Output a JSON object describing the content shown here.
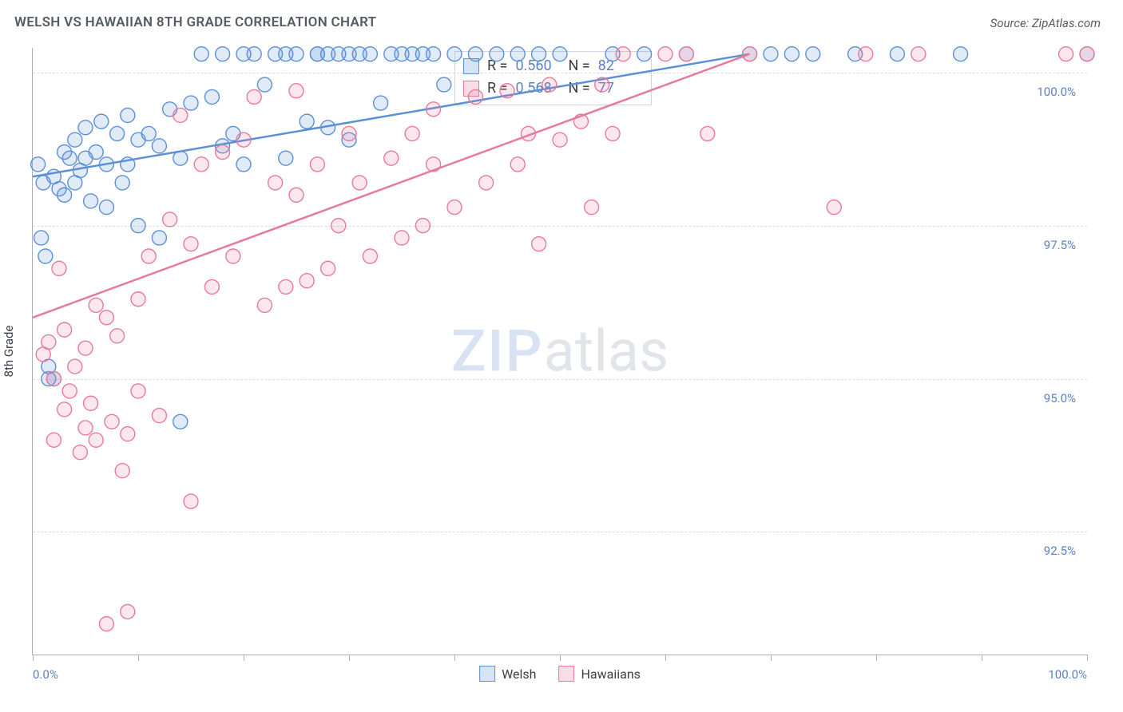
{
  "title": "WELSH VS HAWAIIAN 8TH GRADE CORRELATION CHART",
  "source_label": "Source: ZipAtlas.com",
  "watermark": {
    "part1": "ZIP",
    "part2": "atlas"
  },
  "ylabel": "8th Grade",
  "chart": {
    "type": "scatter",
    "xlim": [
      0,
      100
    ],
    "ylim": [
      90.5,
      100.4
    ],
    "x_tick_positions": [
      0,
      10,
      20,
      30,
      40,
      50,
      60,
      70,
      80,
      90,
      100
    ],
    "x_tick_labels": {
      "0": "0.0%",
      "100": "100.0%"
    },
    "y_gridlines": [
      92.5,
      95.0,
      97.5,
      100.0
    ],
    "y_tick_labels": {
      "92.5": "92.5%",
      "95.0": "95.0%",
      "97.5": "97.5%",
      "100.0": "100.0%"
    },
    "background_color": "#ffffff",
    "grid_color": "#d7dbe0",
    "axis_color": "#aab0b8",
    "marker_radius": 9,
    "marker_stroke_width": 1.4,
    "marker_fill_opacity": 0.18,
    "trend_line_width": 2.5
  },
  "series": [
    {
      "name": "Welsh",
      "color_stroke": "#5b8fd6",
      "color_fill": "#5b8fd6",
      "trend": {
        "x1": 0,
        "y1": 98.3,
        "x2": 68,
        "y2": 100.3
      },
      "stats": {
        "r": "0.560",
        "n": "82"
      },
      "points": [
        [
          0.5,
          98.5
        ],
        [
          0.8,
          97.3
        ],
        [
          1,
          98.2
        ],
        [
          1.2,
          97.0
        ],
        [
          1.5,
          95.0
        ],
        [
          1.5,
          95.2
        ],
        [
          2,
          98.3
        ],
        [
          2,
          95.0
        ],
        [
          2.5,
          98.1
        ],
        [
          3,
          98.0
        ],
        [
          3,
          98.7
        ],
        [
          3.5,
          98.6
        ],
        [
          4,
          98.9
        ],
        [
          4,
          98.2
        ],
        [
          4.5,
          98.4
        ],
        [
          5,
          98.6
        ],
        [
          5,
          99.1
        ],
        [
          5.5,
          97.9
        ],
        [
          6,
          98.7
        ],
        [
          6.5,
          99.2
        ],
        [
          7,
          98.5
        ],
        [
          7,
          97.8
        ],
        [
          8,
          99.0
        ],
        [
          8.5,
          98.2
        ],
        [
          9,
          99.3
        ],
        [
          9,
          98.5
        ],
        [
          10,
          98.9
        ],
        [
          10,
          97.5
        ],
        [
          11,
          99.0
        ],
        [
          12,
          98.8
        ],
        [
          12,
          97.3
        ],
        [
          13,
          99.4
        ],
        [
          14,
          94.3
        ],
        [
          14,
          98.6
        ],
        [
          15,
          99.5
        ],
        [
          16,
          100.3
        ],
        [
          17,
          99.6
        ],
        [
          18,
          100.3
        ],
        [
          18,
          98.8
        ],
        [
          19,
          99.0
        ],
        [
          20,
          100.3
        ],
        [
          20,
          98.5
        ],
        [
          21,
          100.3
        ],
        [
          22,
          99.8
        ],
        [
          23,
          100.3
        ],
        [
          24,
          100.3
        ],
        [
          24,
          98.6
        ],
        [
          25,
          100.3
        ],
        [
          26,
          99.2
        ],
        [
          27,
          100.3
        ],
        [
          27,
          100.3
        ],
        [
          28,
          100.3
        ],
        [
          28,
          99.1
        ],
        [
          29,
          100.3
        ],
        [
          30,
          100.3
        ],
        [
          30,
          98.9
        ],
        [
          31,
          100.3
        ],
        [
          32,
          100.3
        ],
        [
          33,
          99.5
        ],
        [
          34,
          100.3
        ],
        [
          35,
          100.3
        ],
        [
          36,
          100.3
        ],
        [
          37,
          100.3
        ],
        [
          38,
          100.3
        ],
        [
          39,
          99.8
        ],
        [
          40,
          100.3
        ],
        [
          42,
          100.3
        ],
        [
          44,
          100.3
        ],
        [
          46,
          100.3
        ],
        [
          48,
          100.3
        ],
        [
          50,
          100.3
        ],
        [
          55,
          100.3
        ],
        [
          58,
          100.3
        ],
        [
          62,
          100.3
        ],
        [
          68,
          100.3
        ],
        [
          70,
          100.3
        ],
        [
          72,
          100.3
        ],
        [
          74,
          100.3
        ],
        [
          78,
          100.3
        ],
        [
          82,
          100.3
        ],
        [
          88,
          100.3
        ],
        [
          100,
          100.3
        ]
      ]
    },
    {
      "name": "Hawaiians",
      "color_stroke": "#e77a9a",
      "color_fill": "#e77a9a",
      "trend": {
        "x1": 0,
        "y1": 96.0,
        "x2": 68,
        "y2": 100.3
      },
      "stats": {
        "r": "0.568",
        "n": "77"
      },
      "points": [
        [
          1,
          95.4
        ],
        [
          1.5,
          95.6
        ],
        [
          2,
          95.0
        ],
        [
          2,
          94.0
        ],
        [
          2.5,
          96.8
        ],
        [
          3,
          95.8
        ],
        [
          3,
          94.5
        ],
        [
          3.5,
          94.8
        ],
        [
          4,
          95.2
        ],
        [
          4.5,
          93.8
        ],
        [
          5,
          94.2
        ],
        [
          5,
          95.5
        ],
        [
          5.5,
          94.6
        ],
        [
          6,
          96.2
        ],
        [
          6,
          94.0
        ],
        [
          7,
          91.0
        ],
        [
          7,
          96.0
        ],
        [
          7.5,
          94.3
        ],
        [
          8,
          95.7
        ],
        [
          8.5,
          93.5
        ],
        [
          9,
          94.1
        ],
        [
          9,
          91.2
        ],
        [
          10,
          94.8
        ],
        [
          10,
          96.3
        ],
        [
          11,
          97.0
        ],
        [
          12,
          94.4
        ],
        [
          13,
          97.6
        ],
        [
          14,
          99.3
        ],
        [
          15,
          93.0
        ],
        [
          15,
          97.2
        ],
        [
          16,
          98.5
        ],
        [
          17,
          96.5
        ],
        [
          18,
          98.7
        ],
        [
          19,
          97.0
        ],
        [
          20,
          98.9
        ],
        [
          21,
          99.6
        ],
        [
          22,
          96.2
        ],
        [
          23,
          98.2
        ],
        [
          24,
          96.5
        ],
        [
          25,
          98.0
        ],
        [
          25,
          99.7
        ],
        [
          26,
          96.6
        ],
        [
          27,
          98.5
        ],
        [
          28,
          96.8
        ],
        [
          29,
          97.5
        ],
        [
          30,
          99.0
        ],
        [
          31,
          98.2
        ],
        [
          32,
          97.0
        ],
        [
          34,
          98.6
        ],
        [
          35,
          97.3
        ],
        [
          36,
          99.0
        ],
        [
          37,
          97.5
        ],
        [
          38,
          99.4
        ],
        [
          38,
          98.5
        ],
        [
          40,
          97.8
        ],
        [
          42,
          99.6
        ],
        [
          43,
          98.2
        ],
        [
          45,
          99.7
        ],
        [
          46,
          98.5
        ],
        [
          47,
          99.0
        ],
        [
          48,
          97.2
        ],
        [
          49,
          99.8
        ],
        [
          50,
          98.9
        ],
        [
          52,
          99.2
        ],
        [
          53,
          97.8
        ],
        [
          54,
          99.8
        ],
        [
          55,
          99.0
        ],
        [
          56,
          100.3
        ],
        [
          60,
          100.3
        ],
        [
          62,
          100.3
        ],
        [
          64,
          99.0
        ],
        [
          68,
          100.3
        ],
        [
          76,
          97.8
        ],
        [
          79,
          100.3
        ],
        [
          84,
          100.3
        ],
        [
          98,
          100.3
        ],
        [
          100,
          100.3
        ]
      ]
    }
  ],
  "legend_top": {
    "r_label": "R =",
    "n_label": "N ="
  },
  "legend_bottom": [
    {
      "label": "Welsh",
      "series_idx": 0
    },
    {
      "label": "Hawaiians",
      "series_idx": 1
    }
  ]
}
